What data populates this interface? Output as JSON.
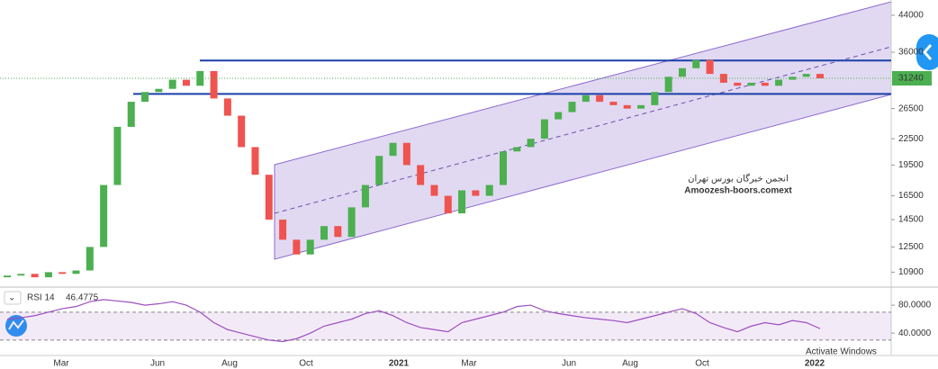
{
  "chart_data": {
    "type": "candlestick",
    "open": [
      10600,
      10700,
      10800,
      10600,
      10900,
      10800,
      11000,
      12500,
      17500,
      24000,
      27500,
      29000,
      29500,
      31000,
      30000,
      32500,
      28000,
      25500,
      21500,
      18500,
      14500,
      13000,
      12000,
      13000,
      14000,
      13200,
      15500,
      17500,
      20500,
      22000,
      19500,
      17500,
      16500,
      15000,
      17000,
      16500,
      17500,
      21000,
      21500,
      22500,
      25000,
      26000,
      27500,
      28500,
      27500,
      27000,
      26500,
      27000,
      29000,
      31500,
      33000,
      34500,
      32000,
      30500,
      30000,
      30500,
      30000,
      31000,
      31500,
      32000
    ],
    "close": [
      10700,
      10800,
      10600,
      10900,
      10800,
      11000,
      12500,
      17500,
      24000,
      27500,
      29000,
      29500,
      31000,
      30000,
      32500,
      28000,
      25500,
      21500,
      18500,
      14500,
      13000,
      12000,
      13000,
      14000,
      13200,
      15500,
      17500,
      20500,
      22000,
      19500,
      17500,
      16500,
      15000,
      17000,
      16500,
      17500,
      21000,
      21500,
      22500,
      25000,
      26000,
      27500,
      28500,
      27500,
      27000,
      26500,
      27000,
      29000,
      31500,
      33000,
      34500,
      32000,
      30500,
      30000,
      30500,
      30000,
      31000,
      31500,
      32000,
      31240
    ],
    "up_color": "#4caf50",
    "down_color": "#ef5350",
    "ylim": [
      10100,
      47800
    ],
    "log_scale": true,
    "yticks": [
      10900,
      12500,
      14500,
      16500,
      19500,
      22500,
      26500,
      36000,
      44000
    ],
    "last_price": 31240,
    "levels": [
      34400,
      28700
    ],
    "xticks": [
      "Mar",
      "Jun",
      "Aug",
      "Oct",
      "2021",
      "Mar",
      "Jun",
      "Aug",
      "Oct",
      "2022"
    ],
    "watermark": [
      "انجمن خبرگان بورس تهران",
      "Amoozesh-boors.comext"
    ],
    "indicator": {
      "name": "RSI 14",
      "current": 46.4775,
      "color": "#9c4fc0",
      "values": [
        60,
        62,
        65,
        70,
        75,
        78,
        85,
        88,
        86,
        84,
        80,
        82,
        85,
        80,
        70,
        55,
        45,
        40,
        35,
        30,
        28,
        32,
        40,
        50,
        55,
        60,
        68,
        72,
        65,
        55,
        48,
        45,
        42,
        55,
        60,
        65,
        70,
        78,
        80,
        72,
        68,
        65,
        62,
        60,
        58,
        55,
        60,
        65,
        70,
        75,
        68,
        55,
        48,
        42,
        50,
        55,
        52,
        58,
        55,
        46.4775
      ],
      "ylim": [
        8,
        102
      ],
      "band": [
        70,
        30
      ],
      "yticks": [
        {
          "value": 80,
          "label": "80.0000"
        },
        {
          "value": 40,
          "label": "40.0000"
        }
      ]
    },
    "overlay_text": "Activate Windows"
  }
}
